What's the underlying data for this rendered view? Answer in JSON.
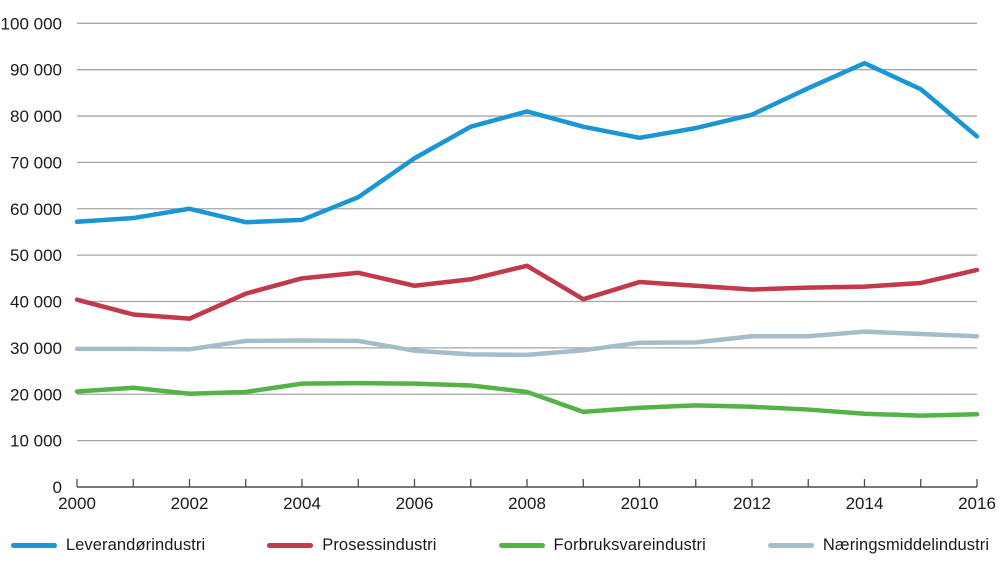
{
  "chart_data": {
    "type": "line",
    "title": "",
    "xlabel": "",
    "ylabel": "",
    "x": [
      2000,
      2001,
      2002,
      2003,
      2004,
      2005,
      2006,
      2007,
      2008,
      2009,
      2010,
      2011,
      2012,
      2013,
      2014,
      2015,
      2016
    ],
    "x_labeled_ticks": [
      2000,
      2002,
      2004,
      2006,
      2008,
      2010,
      2012,
      2014,
      2016
    ],
    "ylim": [
      0,
      100000
    ],
    "y_ticks": [
      {
        "value": 0,
        "label": "0"
      },
      {
        "value": 10000,
        "label": "10 000"
      },
      {
        "value": 20000,
        "label": "20 000"
      },
      {
        "value": 30000,
        "label": "30 000"
      },
      {
        "value": 40000,
        "label": "40 000"
      },
      {
        "value": 50000,
        "label": "50 000"
      },
      {
        "value": 60000,
        "label": "60 000"
      },
      {
        "value": 70000,
        "label": "70 000"
      },
      {
        "value": 80000,
        "label": "80 000"
      },
      {
        "value": 90000,
        "label": "90 000"
      },
      {
        "value": 100000,
        "label": "100 000"
      }
    ],
    "grid": "horizontal",
    "legend_position": "bottom",
    "series": [
      {
        "name": "Leverandørindustri",
        "color": "#1A96D4",
        "values": [
          57200,
          58000,
          60000,
          57100,
          57600,
          62500,
          70900,
          77700,
          81000,
          77700,
          75300,
          77400,
          80300,
          86000,
          91400,
          85800,
          75600
        ]
      },
      {
        "name": "Prosessindustri",
        "color": "#C1394A",
        "values": [
          40400,
          37200,
          36300,
          41700,
          45000,
          46200,
          43400,
          44800,
          47700,
          40500,
          44200,
          43400,
          42600,
          43000,
          43200,
          44000,
          46800
        ]
      },
      {
        "name": "Forbruksvareindustri",
        "color": "#54B248",
        "values": [
          20600,
          21400,
          20100,
          20500,
          22300,
          22400,
          22300,
          21900,
          20500,
          16200,
          17100,
          17600,
          17300,
          16700,
          15800,
          15400,
          15700
        ]
      },
      {
        "name": "Næringsmiddelindustri",
        "color": "#A5BCCB",
        "values": [
          29800,
          29800,
          29700,
          31500,
          31600,
          31500,
          29400,
          28600,
          28500,
          29500,
          31100,
          31200,
          32500,
          32500,
          33500,
          33000,
          32500
        ]
      }
    ]
  },
  "style": {
    "grid_color": "#A6A6A6",
    "axis_color": "#4D4D4D",
    "text_color": "#1A1A1A",
    "background": "#FFFFFF",
    "line_width": 4.5
  }
}
